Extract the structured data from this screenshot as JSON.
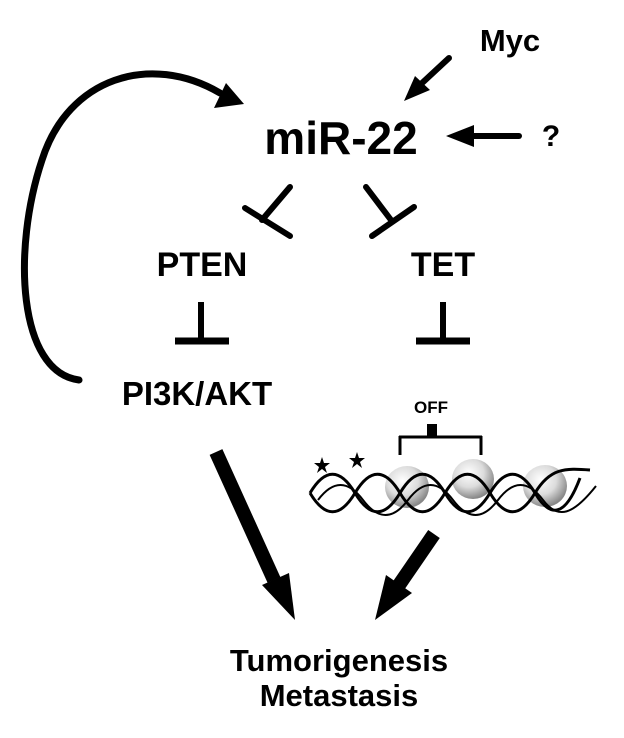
{
  "nodes": {
    "myc": "Myc",
    "unknown": "?",
    "mir22": "miR-22",
    "pten": "PTEN",
    "tet": "TET",
    "pi3k_akt": "PI3K/AKT",
    "off": "OFF",
    "outcome_line1": "Tumorigenesis",
    "outcome_line2": "Metastasis"
  },
  "colors": {
    "ink": "#000000",
    "background": "#ffffff",
    "nucleosome": "#c8c8c8"
  }
}
